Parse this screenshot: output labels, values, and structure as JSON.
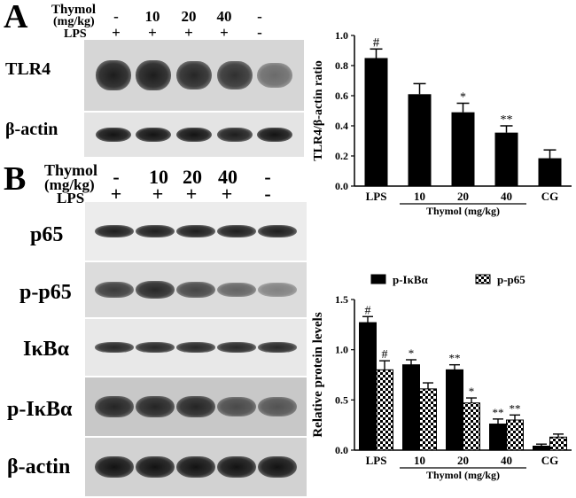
{
  "panelA": {
    "letter": "A",
    "header": {
      "thymol_label": "Thymol",
      "unit_label": "(mg/kg)",
      "lps_label": "LPS",
      "doses": [
        "-",
        "10",
        "20",
        "40",
        "-"
      ],
      "lps_signs": [
        "+",
        "+",
        "+",
        "+",
        "-"
      ]
    },
    "blots": [
      {
        "label": "TLR4",
        "intensity": [
          0.95,
          0.95,
          0.9,
          0.85,
          0.55
        ]
      },
      {
        "label": "β-actin",
        "intensity": [
          1.0,
          1.0,
          1.0,
          0.95,
          1.0
        ]
      }
    ]
  },
  "panelB": {
    "letter": "B",
    "header": {
      "thymol_label": "Thymol",
      "unit_label": "(mg/kg)",
      "lps_label": "LPS",
      "doses": [
        "-",
        "10",
        "20",
        "40",
        "-"
      ],
      "lps_signs": [
        "+",
        "+",
        "+",
        "+",
        "-"
      ]
    },
    "blots": [
      {
        "label": "p65",
        "intensity": [
          0.95,
          0.95,
          0.95,
          0.95,
          0.95
        ]
      },
      {
        "label": "p-p65",
        "intensity": [
          0.8,
          0.9,
          0.75,
          0.6,
          0.45
        ]
      },
      {
        "label": "IκBα",
        "intensity": [
          0.9,
          0.9,
          0.9,
          0.9,
          0.9
        ]
      },
      {
        "label": "p-IκBα",
        "intensity": [
          0.9,
          0.9,
          0.9,
          0.7,
          0.65
        ]
      },
      {
        "label": "β-actin",
        "intensity": [
          1.0,
          1.0,
          1.0,
          1.0,
          1.0
        ]
      }
    ]
  },
  "chart_data": [
    {
      "type": "bar",
      "categories": [
        "LPS",
        "10",
        "20",
        "40",
        "CG"
      ],
      "values": [
        0.85,
        0.61,
        0.49,
        0.355,
        0.185
      ],
      "errors": [
        0.06,
        0.07,
        0.06,
        0.045,
        0.055
      ],
      "annotations": [
        "#",
        "",
        "*",
        "**",
        ""
      ],
      "ylabel": "TLR4/β-actin ratio",
      "xgroup_label": "Thymol (mg/kg)",
      "yticks": [
        "0.0",
        "0.2",
        "0.4",
        "0.6",
        "0.8",
        "1.0"
      ],
      "ylim": [
        0,
        1.0
      ],
      "bar_color": "#000000"
    },
    {
      "type": "bar",
      "categories": [
        "LPS",
        "10",
        "20",
        "40",
        "CG"
      ],
      "series": [
        {
          "name": "p-IκBα",
          "values": [
            1.27,
            0.85,
            0.8,
            0.26,
            0.04
          ],
          "errors": [
            0.06,
            0.05,
            0.05,
            0.05,
            0.02
          ],
          "annotations": [
            "#",
            "*",
            "**",
            "**",
            ""
          ],
          "fill": "solid"
        },
        {
          "name": "p-p65",
          "values": [
            0.8,
            0.61,
            0.47,
            0.3,
            0.13
          ],
          "errors": [
            0.09,
            0.06,
            0.05,
            0.05,
            0.03
          ],
          "annotations": [
            "#",
            "",
            "*",
            "**",
            ""
          ],
          "fill": "checker"
        }
      ],
      "ylabel": "Relative protein levels",
      "xgroup_label": "Thymol (mg/kg)",
      "yticks": [
        "0.0",
        "0.5",
        "1.0",
        "1.5"
      ],
      "ylim": [
        0,
        1.5
      ],
      "legend": "top"
    }
  ]
}
